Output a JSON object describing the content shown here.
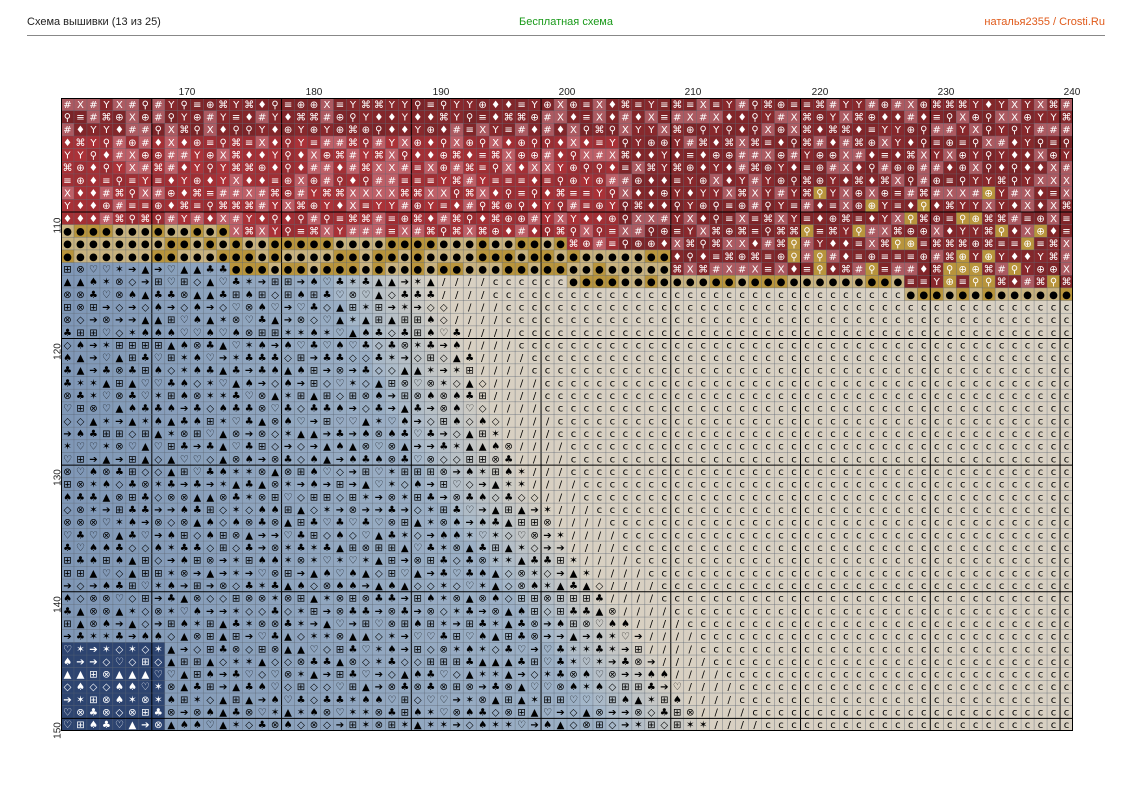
{
  "header": {
    "left": "Схема вышивки (13 из 25)",
    "center": "Бесплатная схема",
    "right": "наталья2355 / Crosti.Ru"
  },
  "axis": {
    "x_labels": [
      "170",
      "180",
      "190",
      "200",
      "210",
      "220",
      "230",
      "240"
    ],
    "y_labels": [
      "110",
      "120",
      "130",
      "140",
      "150"
    ]
  },
  "grid": {
    "x_start": 163,
    "x_end": 240,
    "y_start": 101,
    "y_end": 150,
    "major_every": 10
  },
  "colors": {
    "header_center": "#1a9a1a",
    "header_right": "#e05a1a",
    "maroon": "#8e2a2e",
    "red": "#b2343a",
    "pink": "#c98a94",
    "gold": "#b8943c",
    "steel_blue": "#7f97b6",
    "light_blue": "#a3b6c9",
    "navy": "#2d4470",
    "beige": "#d8d0c2",
    "grid_line": "#556070",
    "major_line": "#000000"
  },
  "symbols": {
    "maroon_zone": [
      "#",
      "X",
      "Y",
      "⌘",
      "♦",
      "≡",
      "⊕",
      "⚲"
    ],
    "blue_zone": [
      "✶",
      "♡",
      "◇",
      "⊗",
      "➔",
      "♣",
      "♠",
      "▲",
      "⊞"
    ],
    "beige_zone": [
      "c",
      "/"
    ]
  }
}
